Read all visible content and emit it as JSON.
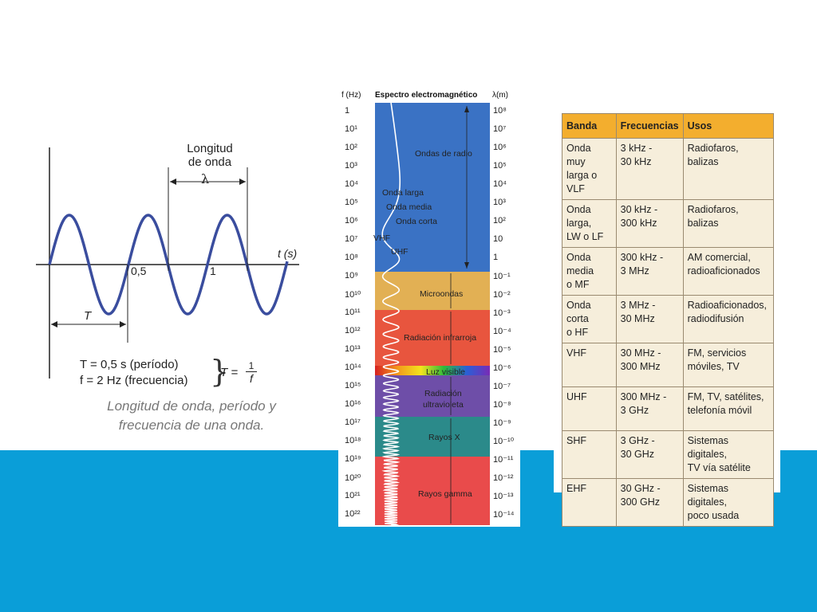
{
  "wave": {
    "wavelength_label_line1": "Longitud",
    "wavelength_label_line2": "de onda",
    "lambda": "λ",
    "t_axis_label": "t (s)",
    "tick_half": "0,5",
    "tick_one": "1",
    "period_label": "T",
    "formula_period": "T = 0,5 s (período)",
    "formula_freq": "f = 2 Hz (frecuencia)",
    "formula_T": "T =",
    "formula_num": "1",
    "formula_den": "f",
    "caption_line1": "Longitud de onda, período y",
    "caption_line2": "frecuencia de una onda."
  },
  "spectrum": {
    "freq_header": "f (Hz)",
    "title": "Espectro electromagnético",
    "wl_header": "λ(m)",
    "frequencies": [
      "1",
      "10¹",
      "10²",
      "10³",
      "10⁴",
      "10⁵",
      "10⁶",
      "10⁷",
      "10⁸",
      "10⁹",
      "10¹⁰",
      "10¹¹",
      "10¹²",
      "10¹³",
      "10¹⁴",
      "10¹⁵",
      "10¹⁶",
      "10¹⁷",
      "10¹⁸",
      "10¹⁹",
      "10²⁰",
      "10²¹",
      "10²²"
    ],
    "wavelengths": [
      "10⁸",
      "10⁷",
      "10⁶",
      "10⁵",
      "10⁴",
      "10³",
      "10²",
      "10",
      "1",
      "10⁻¹",
      "10⁻²",
      "10⁻³",
      "10⁻⁴",
      "10⁻⁵",
      "10⁻⁶",
      "10⁻⁷",
      "10⁻⁸",
      "10⁻⁹",
      "10⁻¹⁰",
      "10⁻¹¹",
      "10⁻¹²",
      "10⁻¹³",
      "10⁻¹⁴"
    ],
    "regions": {
      "radio": "Ondas de radio",
      "long": "Onda larga",
      "medium": "Onda media",
      "short": "Onda corta",
      "vhf": "VHF",
      "uhf": "UHF",
      "micro": "Microondas",
      "ir": "Radiación infrarroja",
      "visible": "Luz visible",
      "uv1": "Radiación",
      "uv2": "ultravioleta",
      "xray": "Rayos X",
      "gamma": "Rayos gamma"
    },
    "colors": {
      "radio": "#3a72c4",
      "micro": "#e2b054",
      "ir": "#e8553e",
      "uv": "#6e4ea8",
      "xray": "#2b8a8a",
      "gamma": "#e94b4b"
    }
  },
  "table": {
    "headers": [
      "Banda",
      "Frecuencias",
      "Usos"
    ],
    "rows": [
      [
        "Onda muy\nlarga o VLF",
        "3 kHz -\n30 kHz",
        "Radiofaros,\nbalizas"
      ],
      [
        "Onda larga,\nLW o LF",
        "30 kHz -\n300 kHz",
        "Radiofaros,\nbalizas"
      ],
      [
        "Onda media\no MF",
        "300 kHz -\n3 MHz",
        "AM comercial,\nradioaficionados"
      ],
      [
        "Onda corta\no HF",
        "3 MHz -\n30 MHz",
        "Radioaficionados,\nradiodifusión"
      ],
      [
        "VHF",
        "30 MHz -\n300 MHz",
        "FM, servicios\nmóviles, TV"
      ],
      [
        "UHF",
        "300 MHz -\n3 GHz",
        "FM, TV, satélites,\ntelefonía móvil"
      ],
      [
        "SHF",
        "3 GHz -\n30 GHz",
        "Sistemas digitales,\nTV vía satélite"
      ],
      [
        "EHF",
        "30 GHz -\n300 GHz",
        "Sistemas digitales,\npoco usada"
      ]
    ]
  }
}
